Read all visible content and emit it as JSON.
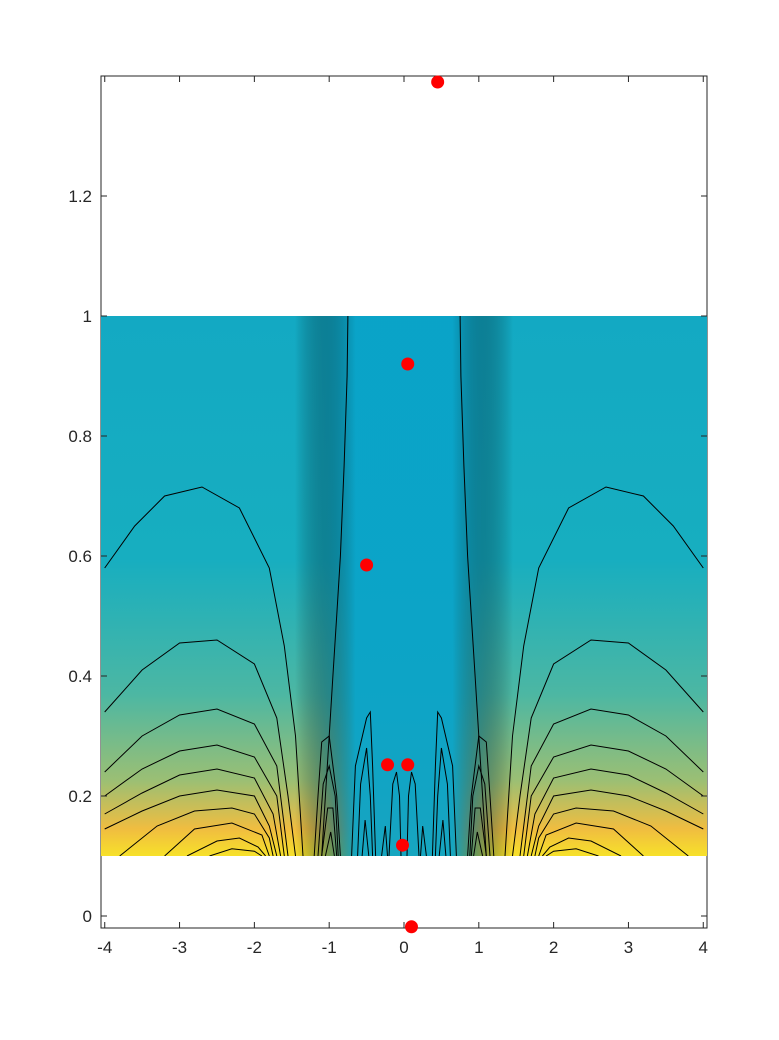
{
  "chart_data": {
    "type": "heatmap",
    "title": "",
    "xlabel": "",
    "ylabel": "",
    "xlim": [
      -4.05,
      4.05
    ],
    "ylim": [
      -0.02,
      1.4
    ],
    "grid": false,
    "legend": "none",
    "colormap": "parula",
    "field_extent": {
      "x": [
        -4.05,
        4.05
      ],
      "y": [
        0.1,
        1.0
      ]
    },
    "x_ticks": [
      -4,
      -3,
      -2,
      -1,
      0,
      1,
      2,
      3,
      4
    ],
    "x_tick_labels": [
      "-4",
      "-3",
      "-2",
      "-1",
      "0",
      "1",
      "2",
      "3",
      "4"
    ],
    "y_ticks": [
      0,
      0.2,
      0.4,
      0.6,
      0.8,
      1,
      1.2
    ],
    "y_tick_labels": [
      "0",
      "0.2",
      "0.4",
      "0.6",
      "0.8",
      "1",
      "1.2"
    ],
    "points": [
      {
        "x": 0.45,
        "y": 1.39
      },
      {
        "x": 0.05,
        "y": 0.92
      },
      {
        "x": -0.5,
        "y": 0.585
      },
      {
        "x": -0.22,
        "y": 0.252
      },
      {
        "x": 0.05,
        "y": 0.252
      },
      {
        "x": -0.02,
        "y": 0.118
      },
      {
        "x": 0.1,
        "y": -0.018
      }
    ],
    "point_color": "#ff0000",
    "contour_color": "#000000",
    "contours": [
      [
        [
          -0.75,
          1.0
        ],
        [
          -0.76,
          0.9
        ],
        [
          -0.8,
          0.75
        ],
        [
          -0.85,
          0.6
        ],
        [
          -0.9,
          0.5
        ],
        [
          -0.95,
          0.4
        ],
        [
          -1.0,
          0.3
        ],
        [
          -1.05,
          0.2
        ],
        [
          -1.1,
          0.1
        ]
      ],
      [
        [
          0.75,
          1.0
        ],
        [
          0.76,
          0.9
        ],
        [
          0.8,
          0.75
        ],
        [
          0.85,
          0.6
        ],
        [
          0.9,
          0.5
        ],
        [
          0.95,
          0.4
        ],
        [
          1.0,
          0.3
        ],
        [
          1.05,
          0.2
        ],
        [
          1.1,
          0.1
        ]
      ],
      [
        [
          -4.0,
          0.58
        ],
        [
          -3.6,
          0.65
        ],
        [
          -3.2,
          0.7
        ],
        [
          -2.7,
          0.715
        ],
        [
          -2.2,
          0.68
        ],
        [
          -1.8,
          0.58
        ],
        [
          -1.6,
          0.45
        ],
        [
          -1.45,
          0.3
        ],
        [
          -1.35,
          0.1
        ]
      ],
      [
        [
          4.0,
          0.58
        ],
        [
          3.6,
          0.65
        ],
        [
          3.2,
          0.7
        ],
        [
          2.7,
          0.715
        ],
        [
          2.2,
          0.68
        ],
        [
          1.8,
          0.58
        ],
        [
          1.6,
          0.45
        ],
        [
          1.45,
          0.3
        ],
        [
          1.35,
          0.1
        ]
      ],
      [
        [
          -4.0,
          0.34
        ],
        [
          -3.5,
          0.41
        ],
        [
          -3.0,
          0.455
        ],
        [
          -2.5,
          0.46
        ],
        [
          -2.0,
          0.42
        ],
        [
          -1.7,
          0.33
        ],
        [
          -1.55,
          0.2
        ],
        [
          -1.45,
          0.1
        ]
      ],
      [
        [
          4.0,
          0.34
        ],
        [
          3.5,
          0.41
        ],
        [
          3.0,
          0.455
        ],
        [
          2.5,
          0.46
        ],
        [
          2.0,
          0.42
        ],
        [
          1.7,
          0.33
        ],
        [
          1.55,
          0.2
        ],
        [
          1.45,
          0.1
        ]
      ],
      [
        [
          -4.0,
          0.24
        ],
        [
          -3.5,
          0.3
        ],
        [
          -3.0,
          0.335
        ],
        [
          -2.5,
          0.345
        ],
        [
          -2.0,
          0.32
        ],
        [
          -1.7,
          0.25
        ],
        [
          -1.55,
          0.1
        ]
      ],
      [
        [
          4.0,
          0.24
        ],
        [
          3.5,
          0.3
        ],
        [
          3.0,
          0.335
        ],
        [
          2.5,
          0.345
        ],
        [
          2.0,
          0.32
        ],
        [
          1.7,
          0.25
        ],
        [
          1.55,
          0.1
        ]
      ],
      [
        [
          -4.0,
          0.2
        ],
        [
          -3.5,
          0.245
        ],
        [
          -3.0,
          0.275
        ],
        [
          -2.5,
          0.285
        ],
        [
          -2.0,
          0.265
        ],
        [
          -1.7,
          0.2
        ],
        [
          -1.6,
          0.1
        ]
      ],
      [
        [
          4.0,
          0.2
        ],
        [
          3.5,
          0.245
        ],
        [
          3.0,
          0.275
        ],
        [
          2.5,
          0.285
        ],
        [
          2.0,
          0.265
        ],
        [
          1.7,
          0.2
        ],
        [
          1.6,
          0.1
        ]
      ],
      [
        [
          -4.0,
          0.17
        ],
        [
          -3.5,
          0.205
        ],
        [
          -3.0,
          0.235
        ],
        [
          -2.5,
          0.245
        ],
        [
          -2.0,
          0.23
        ],
        [
          -1.75,
          0.17
        ],
        [
          -1.65,
          0.1
        ]
      ],
      [
        [
          4.0,
          0.17
        ],
        [
          3.5,
          0.205
        ],
        [
          3.0,
          0.235
        ],
        [
          2.5,
          0.245
        ],
        [
          2.0,
          0.23
        ],
        [
          1.75,
          0.17
        ],
        [
          1.65,
          0.1
        ]
      ],
      [
        [
          -4.0,
          0.145
        ],
        [
          -3.5,
          0.175
        ],
        [
          -3.0,
          0.2
        ],
        [
          -2.5,
          0.21
        ],
        [
          -2.0,
          0.2
        ],
        [
          -1.8,
          0.15
        ],
        [
          -1.7,
          0.1
        ]
      ],
      [
        [
          4.0,
          0.145
        ],
        [
          3.5,
          0.175
        ],
        [
          3.0,
          0.2
        ],
        [
          2.5,
          0.21
        ],
        [
          2.0,
          0.2
        ],
        [
          1.8,
          0.15
        ],
        [
          1.7,
          0.1
        ]
      ],
      [
        [
          -3.8,
          0.1
        ],
        [
          -3.3,
          0.15
        ],
        [
          -2.8,
          0.175
        ],
        [
          -2.3,
          0.18
        ],
        [
          -2.0,
          0.17
        ],
        [
          -1.8,
          0.13
        ],
        [
          -1.75,
          0.1
        ]
      ],
      [
        [
          3.8,
          0.1
        ],
        [
          3.3,
          0.15
        ],
        [
          2.8,
          0.175
        ],
        [
          2.3,
          0.18
        ],
        [
          2.0,
          0.17
        ],
        [
          1.8,
          0.13
        ],
        [
          1.75,
          0.1
        ]
      ],
      [
        [
          -3.2,
          0.1
        ],
        [
          -2.8,
          0.145
        ],
        [
          -2.3,
          0.155
        ],
        [
          -1.9,
          0.135
        ],
        [
          -1.8,
          0.1
        ]
      ],
      [
        [
          3.2,
          0.1
        ],
        [
          2.8,
          0.145
        ],
        [
          2.3,
          0.155
        ],
        [
          1.9,
          0.135
        ],
        [
          1.8,
          0.1
        ]
      ],
      [
        [
          -2.9,
          0.1
        ],
        [
          -2.5,
          0.125
        ],
        [
          -2.2,
          0.13
        ],
        [
          -1.95,
          0.115
        ],
        [
          -1.85,
          0.1
        ]
      ],
      [
        [
          2.9,
          0.1
        ],
        [
          2.5,
          0.125
        ],
        [
          2.2,
          0.13
        ],
        [
          1.95,
          0.115
        ],
        [
          1.85,
          0.1
        ]
      ],
      [
        [
          -2.6,
          0.1
        ],
        [
          -2.3,
          0.112
        ],
        [
          -2.0,
          0.108
        ],
        [
          -1.9,
          0.1
        ]
      ],
      [
        [
          2.6,
          0.1
        ],
        [
          2.3,
          0.112
        ],
        [
          2.0,
          0.108
        ],
        [
          1.9,
          0.1
        ]
      ],
      [
        [
          -1.2,
          0.1
        ],
        [
          -1.15,
          0.2
        ],
        [
          -1.1,
          0.29
        ],
        [
          -1.0,
          0.3
        ],
        [
          -0.9,
          0.2
        ],
        [
          -0.85,
          0.1
        ]
      ],
      [
        [
          1.2,
          0.1
        ],
        [
          1.15,
          0.2
        ],
        [
          1.1,
          0.29
        ],
        [
          1.0,
          0.3
        ],
        [
          0.9,
          0.2
        ],
        [
          0.85,
          0.1
        ]
      ],
      [
        [
          -1.15,
          0.1
        ],
        [
          -1.08,
          0.22
        ],
        [
          -1.0,
          0.25
        ],
        [
          -0.92,
          0.2
        ],
        [
          -0.88,
          0.1
        ]
      ],
      [
        [
          1.15,
          0.1
        ],
        [
          1.08,
          0.22
        ],
        [
          1.0,
          0.25
        ],
        [
          0.92,
          0.2
        ],
        [
          0.88,
          0.1
        ]
      ],
      [
        [
          -1.1,
          0.1
        ],
        [
          -1.02,
          0.18
        ],
        [
          -0.95,
          0.18
        ],
        [
          -0.9,
          0.1
        ]
      ],
      [
        [
          1.1,
          0.1
        ],
        [
          1.02,
          0.18
        ],
        [
          0.95,
          0.18
        ],
        [
          0.9,
          0.1
        ]
      ],
      [
        [
          -1.05,
          0.1
        ],
        [
          -0.98,
          0.14
        ],
        [
          -0.93,
          0.1
        ]
      ],
      [
        [
          1.05,
          0.1
        ],
        [
          0.98,
          0.14
        ],
        [
          0.93,
          0.1
        ]
      ],
      [
        [
          -0.7,
          0.1
        ],
        [
          -0.65,
          0.25
        ],
        [
          -0.5,
          0.33
        ],
        [
          -0.45,
          0.34
        ],
        [
          -0.42,
          0.25
        ],
        [
          -0.38,
          0.1
        ]
      ],
      [
        [
          0.7,
          0.1
        ],
        [
          0.65,
          0.25
        ],
        [
          0.5,
          0.33
        ],
        [
          0.45,
          0.34
        ],
        [
          0.42,
          0.25
        ],
        [
          0.38,
          0.1
        ]
      ],
      [
        [
          -0.62,
          0.1
        ],
        [
          -0.58,
          0.22
        ],
        [
          -0.5,
          0.28
        ],
        [
          -0.45,
          0.2
        ],
        [
          -0.42,
          0.1
        ]
      ],
      [
        [
          0.62,
          0.1
        ],
        [
          0.58,
          0.22
        ],
        [
          0.5,
          0.28
        ],
        [
          0.45,
          0.2
        ],
        [
          0.42,
          0.1
        ]
      ],
      [
        [
          -0.56,
          0.1
        ],
        [
          -0.52,
          0.16
        ],
        [
          -0.47,
          0.1
        ]
      ],
      [
        [
          0.56,
          0.1
        ],
        [
          0.52,
          0.16
        ],
        [
          0.47,
          0.1
        ]
      ],
      [
        [
          -0.2,
          0.1
        ],
        [
          -0.15,
          0.22
        ],
        [
          -0.1,
          0.24
        ],
        [
          -0.06,
          0.2
        ],
        [
          -0.04,
          0.1
        ]
      ],
      [
        [
          0.2,
          0.1
        ],
        [
          0.15,
          0.22
        ],
        [
          0.1,
          0.24
        ],
        [
          0.06,
          0.2
        ],
        [
          0.04,
          0.1
        ]
      ],
      [
        [
          -0.3,
          0.1
        ],
        [
          -0.25,
          0.15
        ],
        [
          -0.22,
          0.1
        ]
      ],
      [
        [
          0.3,
          0.1
        ],
        [
          0.25,
          0.15
        ],
        [
          0.22,
          0.1
        ]
      ]
    ]
  }
}
